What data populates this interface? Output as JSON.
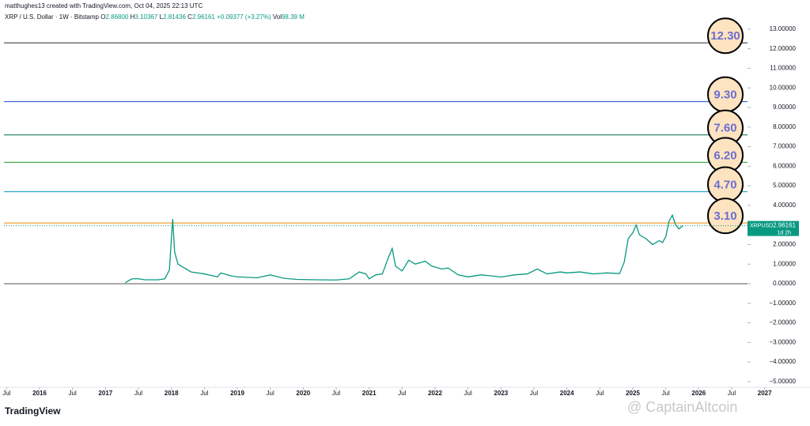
{
  "header": {
    "credit": "matthughes13 created with TradingView.com, Oct 04, 2025 22:13 UTC"
  },
  "chart_data": {
    "type": "line",
    "title": "XRP / U.S. Dollar · 1W · Bitstamp",
    "ohlc": [
      {
        "key": "O",
        "text": "2.86800"
      },
      {
        "key": "H",
        "text": "3.10367"
      },
      {
        "key": "L",
        "text": "2.81436"
      },
      {
        "key": "C",
        "text": "2.96161"
      }
    ],
    "change": "+0.09377 (+3.27%)",
    "volume_key": "Vol",
    "volume": "98.39 M",
    "x": [
      2017.3,
      2017.4,
      2017.5,
      2017.6,
      2017.7,
      2017.8,
      2017.9,
      2017.97,
      2018.0,
      2018.02,
      2018.05,
      2018.1,
      2018.2,
      2018.3,
      2018.5,
      2018.7,
      2018.75,
      2018.9,
      2019.0,
      2019.3,
      2019.5,
      2019.7,
      2019.9,
      2020.2,
      2020.5,
      2020.7,
      2020.85,
      2020.95,
      2021.0,
      2021.1,
      2021.2,
      2021.3,
      2021.35,
      2021.4,
      2021.5,
      2021.6,
      2021.7,
      2021.85,
      2021.95,
      2022.1,
      2022.2,
      2022.35,
      2022.5,
      2022.7,
      2022.9,
      2023.0,
      2023.2,
      2023.4,
      2023.55,
      2023.7,
      2023.9,
      2024.0,
      2024.2,
      2024.4,
      2024.6,
      2024.8,
      2024.87,
      2024.93,
      2025.0,
      2025.05,
      2025.1,
      2025.2,
      2025.3,
      2025.4,
      2025.45,
      2025.5,
      2025.55,
      2025.6,
      2025.65,
      2025.7,
      2025.76
    ],
    "series": [
      {
        "name": "XRPUSD",
        "color": "#089981",
        "values": [
          0.05,
          0.25,
          0.25,
          0.2,
          0.2,
          0.2,
          0.25,
          0.7,
          2.3,
          3.3,
          1.6,
          1.0,
          0.8,
          0.6,
          0.5,
          0.35,
          0.55,
          0.4,
          0.35,
          0.3,
          0.45,
          0.28,
          0.22,
          0.2,
          0.19,
          0.25,
          0.6,
          0.5,
          0.25,
          0.45,
          0.5,
          1.4,
          1.8,
          0.9,
          0.65,
          1.2,
          1.0,
          1.15,
          0.9,
          0.75,
          0.8,
          0.45,
          0.35,
          0.45,
          0.38,
          0.34,
          0.45,
          0.5,
          0.75,
          0.5,
          0.6,
          0.55,
          0.6,
          0.5,
          0.55,
          0.52,
          1.1,
          2.3,
          2.6,
          3.0,
          2.5,
          2.3,
          2.0,
          2.2,
          2.1,
          2.4,
          3.2,
          3.5,
          3.0,
          2.8,
          2.96161
        ]
      }
    ],
    "xlim": [
      2015.46,
      2027.52
    ],
    "xticks": [
      {
        "value": 2015.5,
        "label": "Jul"
      },
      2016,
      {
        "value": 2016.5,
        "label": "Jul"
      },
      2017,
      {
        "value": 2017.5,
        "label": "Jul"
      },
      2018,
      {
        "value": 2018.5,
        "label": "Jul"
      },
      2019,
      {
        "value": 2019.5,
        "label": "Jul"
      },
      2020,
      {
        "value": 2020.5,
        "label": "Jul"
      },
      2021,
      {
        "value": 2021.5,
        "label": "Jul"
      },
      2022,
      {
        "value": 2022.5,
        "label": "Jul"
      },
      2023,
      {
        "value": 2023.5,
        "label": "Jul"
      },
      2024,
      {
        "value": 2024.5,
        "label": "Jul"
      },
      2025,
      {
        "value": 2025.5,
        "label": "Jul"
      },
      2026,
      {
        "value": 2026.5,
        "label": "Jul"
      },
      2027
    ],
    "ylim": [
      -5.29,
      14.49
    ],
    "yticks": [
      {
        "value": 13,
        "label": "13.00000"
      },
      {
        "value": 12,
        "label": "12.00000"
      },
      {
        "value": 11,
        "label": "11.00000"
      },
      {
        "value": 10,
        "label": "10.00000"
      },
      {
        "value": 9,
        "label": "9.00000"
      },
      {
        "value": 8,
        "label": "8.00000"
      },
      {
        "value": 7,
        "label": "7.00000"
      },
      {
        "value": 6,
        "label": "6.00000"
      },
      {
        "value": 5,
        "label": "5.00000"
      },
      {
        "value": 4,
        "label": "4.00000"
      },
      {
        "value": 3,
        "label": "3.00000"
      },
      {
        "value": 2,
        "label": "2.00000"
      },
      {
        "value": 1,
        "label": "1.00000"
      },
      {
        "value": 0,
        "label": "0.00000"
      },
      {
        "value": -1,
        "label": "−1.00000"
      },
      {
        "value": -2,
        "label": "−2.00000"
      },
      {
        "value": -3,
        "label": "−3.00000"
      },
      {
        "value": -4,
        "label": "−4.00000"
      },
      {
        "value": -5,
        "label": "−5.00000"
      }
    ],
    "levels": [
      {
        "value": 12.3,
        "label": "12.30",
        "color": "#555555"
      },
      {
        "value": 9.3,
        "label": "9.30",
        "color": "#3a5fcd"
      },
      {
        "value": 7.6,
        "label": "7.60",
        "color": "#1b7f5e"
      },
      {
        "value": 6.2,
        "label": "6.20",
        "color": "#4caf50"
      },
      {
        "value": 4.7,
        "label": "4.70",
        "color": "#2aa7c9"
      },
      {
        "value": 3.1,
        "label": "3.10",
        "color": "#f0a030"
      }
    ],
    "last_price": {
      "value": 2.96161,
      "countdown": "1d 2h",
      "color": "#089981"
    },
    "watermark": "@ CaptainAltcoin",
    "brand": "TradingView"
  }
}
